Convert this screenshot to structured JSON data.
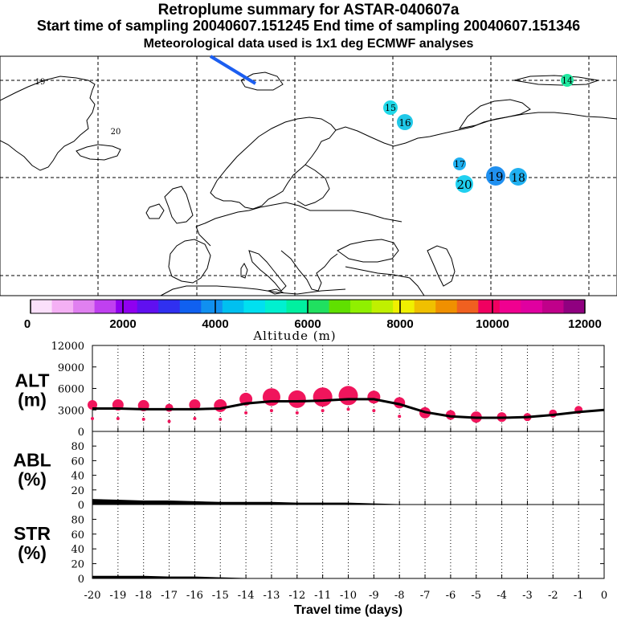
{
  "header": {
    "title": "Retroplume summary for ASTAR-040607a",
    "sampling": "Start time of sampling 20040607.151245      End time of sampling 20040607.151346",
    "met": "Meteorological data used is 1x1 deg ECMWF analyses"
  },
  "map": {
    "labels": [
      {
        "text": "14",
        "color": "#20e8a0"
      },
      {
        "text": "15",
        "color": "#20d8e8"
      },
      {
        "text": "16",
        "color": "#20c8e8"
      },
      {
        "text": "17",
        "color": "#20b0f0"
      },
      {
        "text": "18",
        "color": "#20b0f0"
      },
      {
        "text": "19",
        "color": "#2090f0"
      },
      {
        "text": "20",
        "color": "#20d0f0"
      },
      {
        "text": "19",
        "color": ""
      },
      {
        "text": "20",
        "color": ""
      }
    ]
  },
  "colorbar": {
    "colors": [
      "#fbe0fb",
      "#f4b0f4",
      "#e080f0",
      "#c040f0",
      "#9000f0",
      "#6010f0",
      "#3030f0",
      "#1060f0",
      "#1090f0",
      "#00c0f0",
      "#00e0f0",
      "#00f0d0",
      "#00f0a0",
      "#20e060",
      "#60e000",
      "#90f000",
      "#c0f000",
      "#f0f000",
      "#f0c000",
      "#f09000",
      "#f06020",
      "#f00060",
      "#f00090",
      "#e000a0",
      "#c0008a",
      "#900080"
    ],
    "tick_labels": [
      "0",
      "2000",
      "4000",
      "6000",
      "8000",
      "10000",
      "12000"
    ],
    "label": "Altitude (m)"
  },
  "chart_data": [
    {
      "type": "line",
      "panel": "ALT",
      "ylabel": "ALT\n(m)",
      "ylabel_lines": [
        "ALT",
        "(m)"
      ],
      "ylim": [
        0,
        12000
      ],
      "yticks": [
        0,
        3000,
        6000,
        9000,
        12000
      ],
      "x": [
        -20,
        -19,
        -18,
        -17,
        -16,
        -15,
        -14,
        -13,
        -12,
        -11,
        -10,
        -9,
        -8,
        -7,
        -6,
        -5,
        -4,
        -3,
        -2,
        -1,
        0
      ],
      "mean": [
        3200,
        3200,
        3100,
        3100,
        3100,
        3200,
        3900,
        4200,
        4200,
        4300,
        4500,
        4500,
        3800,
        2700,
        2100,
        1900,
        1900,
        2000,
        2300,
        2700,
        3000
      ],
      "clusters": {
        "x": [
          -20,
          -19,
          -18,
          -17,
          -16,
          -15,
          -14,
          -13,
          -12,
          -11,
          -10,
          -9,
          -8,
          -7,
          -6,
          -5,
          -4,
          -3,
          -2,
          -1
        ],
        "y": [
          3700,
          3700,
          3600,
          3300,
          3700,
          3600,
          4500,
          4800,
          4500,
          4800,
          5000,
          4800,
          4000,
          2600,
          2300,
          2000,
          2000,
          2000,
          2500,
          3000
        ],
        "size": [
          6,
          7,
          7,
          5,
          7,
          8,
          8,
          11,
          11,
          12,
          12,
          8,
          7,
          7,
          6,
          7,
          6,
          5,
          5,
          5
        ],
        "color": "#f0155c"
      }
    },
    {
      "type": "area",
      "panel": "ABL",
      "ylabel": "ABL\n(%)",
      "ylabel_lines": [
        "ABL",
        "(%)"
      ],
      "ylim": [
        0,
        100
      ],
      "yticks": [
        0,
        20,
        40,
        60,
        80
      ],
      "x": [
        -20,
        -19,
        -18,
        -17,
        -16,
        -15,
        -14,
        -13,
        -12,
        -11,
        -10,
        -9,
        -8,
        -7,
        -6,
        -5,
        -4,
        -3,
        -2,
        -1,
        0
      ],
      "values": [
        7,
        6,
        5,
        5,
        4,
        3,
        3,
        3,
        2,
        2,
        2,
        1,
        0,
        0,
        0,
        0,
        0,
        0,
        0,
        0,
        0
      ]
    },
    {
      "type": "area",
      "panel": "STR",
      "ylabel": "STR\n(%)",
      "ylabel_lines": [
        "STR",
        "(%)"
      ],
      "ylim": [
        0,
        100
      ],
      "yticks": [
        0,
        20,
        40,
        60,
        80
      ],
      "x": [
        -20,
        -19,
        -18,
        -17,
        -16,
        -15,
        -14,
        -13,
        -12,
        -11,
        -10,
        -9,
        -8,
        -7,
        -6,
        -5,
        -4,
        -3,
        -2,
        -1,
        0
      ],
      "values": [
        3,
        3,
        3,
        2,
        2,
        1,
        0,
        0,
        0,
        0,
        0,
        0,
        0,
        0,
        0,
        0,
        0,
        0,
        0,
        0,
        0
      ],
      "xlabel": "Travel time (days)",
      "xtick_labels": [
        "-20",
        "-19",
        "-18",
        "-17",
        "-16",
        "-15",
        "-14",
        "-13",
        "-12",
        "-11",
        "-10",
        "-9",
        "-8",
        "-7",
        "-6",
        "-5",
        "-4",
        "-3",
        "-2",
        "-1",
        "0"
      ]
    }
  ]
}
